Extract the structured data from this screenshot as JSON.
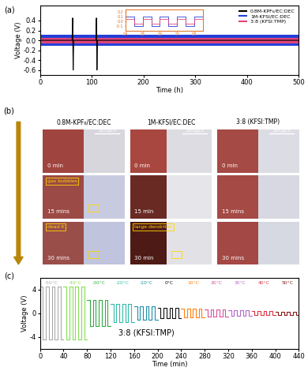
{
  "chart_data": [
    {
      "type": "line",
      "title": "(a)",
      "x_label": "Time (h)",
      "y_label": "Voltage (V)",
      "xlim": [
        0,
        500
      ],
      "xticks": [
        0,
        100,
        200,
        300,
        400,
        500
      ],
      "ylim": [
        -0.7,
        0.7
      ],
      "yticks": [
        -0.6,
        -0.4,
        -0.2,
        0.0,
        0.2,
        0.4
      ],
      "legend": "upper right",
      "series": [
        {
          "name": "0.8M-KPF₆/EC:DEC",
          "color": "#000000",
          "type": "line",
          "x": [
            0,
            62,
            63,
            64,
            65,
            108,
            109,
            110,
            111,
            500
          ],
          "values": [
            0,
            0,
            0.45,
            -0.6,
            0,
            0,
            0.45,
            -0.6,
            0,
            0
          ]
        },
        {
          "name": "1M-KFSI/EC:DEC",
          "color": "#2440d8",
          "type": "band",
          "x": [
            0,
            500
          ],
          "upper": [
            0.11,
            0.11
          ],
          "lower": [
            -0.11,
            -0.11
          ]
        },
        {
          "name": "3:8 (KFSI:TMP)",
          "color": "#e0457b",
          "type": "band",
          "x": [
            0,
            500
          ],
          "upper": [
            0.05,
            0.05
          ],
          "lower": [
            -0.06,
            -0.06
          ]
        }
      ],
      "inset": {
        "xlim": [
          54,
          58.5
        ],
        "xticks": [
          54,
          55,
          56,
          57,
          58
        ],
        "ylim": [
          -0.2,
          0.25
        ],
        "yticks": [
          -0.1,
          0.0,
          0.1,
          0.2
        ],
        "series": [
          {
            "color": "#2440d8",
            "line_style": "steps",
            "x": [
              54,
              54.5,
              55,
              55.5,
              56,
              56.5,
              57,
              57.5,
              58,
              58.5
            ],
            "values": [
              0.1,
              -0.1,
              0.1,
              -0.1,
              0.1,
              -0.1,
              0.1,
              -0.1,
              0.1,
              0.1
            ]
          },
          {
            "color": "#e0457b",
            "line_style": "steps",
            "x": [
              54,
              54.5,
              55,
              55.5,
              56,
              56.5,
              57,
              57.5,
              58,
              58.5
            ],
            "values": [
              0.05,
              -0.05,
              0.05,
              -0.05,
              0.05,
              -0.05,
              0.05,
              -0.05,
              0.05,
              0.05
            ]
          }
        ]
      }
    },
    {
      "type": "line",
      "title": "(c)",
      "x_label": "Time (min)",
      "y_label": "Voltage (V)",
      "text": "3:8 (KFSI:TMP)",
      "xlim": [
        0,
        440
      ],
      "xticks": [
        0,
        40,
        80,
        120,
        160,
        200,
        240,
        280,
        320,
        360,
        400,
        440
      ],
      "ylim": [
        -6,
        6
      ],
      "yticks": [
        -4,
        0,
        4
      ],
      "series": [
        {
          "name": "-50°C",
          "color": "#aaaaaa",
          "line_style": "steps",
          "x": [
            0,
            5,
            10,
            15,
            20,
            25,
            30,
            35,
            40
          ],
          "values": [
            4.5,
            -4.5,
            4.5,
            -4.5,
            4.5,
            -4.5,
            4.5,
            -4.5,
            -4.5
          ]
        },
        {
          "name": "-40°C",
          "color": "#88dd55",
          "line_style": "steps",
          "x": [
            40,
            45,
            50,
            55,
            60,
            65,
            70,
            75,
            80
          ],
          "values": [
            4.5,
            -4.5,
            4.5,
            -4.5,
            4.5,
            -4.5,
            4.5,
            -4.5,
            -4.5
          ]
        },
        {
          "name": "-30°C",
          "color": "#33aa44",
          "line_style": "steps",
          "x": [
            80,
            85,
            90,
            95,
            100,
            105,
            110,
            115,
            120
          ],
          "values": [
            2.2,
            -2.2,
            2.2,
            -2.2,
            2.2,
            -2.2,
            2.2,
            -2.2,
            -2.2
          ]
        },
        {
          "name": "-20°C",
          "color": "#33bbaa",
          "line_style": "steps",
          "x": [
            120,
            125,
            130,
            135,
            140,
            145,
            150,
            155,
            160
          ],
          "values": [
            1.5,
            -1.5,
            1.5,
            -1.5,
            1.5,
            -1.5,
            1.5,
            -1.5,
            -1.5
          ]
        },
        {
          "name": "-10°C",
          "color": "#1a8fa8",
          "line_style": "steps",
          "x": [
            160,
            165,
            170,
            175,
            180,
            185,
            190,
            195,
            200
          ],
          "values": [
            1.1,
            -1.1,
            1.1,
            -1.1,
            1.1,
            -1.1,
            1.1,
            -1.1,
            -1.1
          ]
        },
        {
          "name": "0°C",
          "color": "#111111",
          "line_style": "steps",
          "x": [
            200,
            205,
            210,
            215,
            220,
            225,
            230,
            235,
            240
          ],
          "values": [
            0.9,
            -0.9,
            0.9,
            -0.9,
            0.9,
            -0.9,
            0.9,
            -0.9,
            -0.9
          ]
        },
        {
          "name": "10°C",
          "color": "#ff7f0e",
          "line_style": "steps",
          "x": [
            240,
            245,
            250,
            255,
            260,
            265,
            270,
            275,
            280
          ],
          "values": [
            0.7,
            -0.7,
            0.7,
            -0.7,
            0.7,
            -0.7,
            0.7,
            -0.7,
            -0.7
          ]
        },
        {
          "name": "20°C",
          "color": "#d94fa0",
          "line_style": "steps",
          "x": [
            280,
            285,
            290,
            295,
            300,
            305,
            310,
            315,
            320
          ],
          "values": [
            0.55,
            -0.55,
            0.55,
            -0.55,
            0.55,
            -0.55,
            0.55,
            -0.55,
            -0.55
          ]
        },
        {
          "name": "30°C",
          "color": "#b266cc",
          "line_style": "steps",
          "x": [
            320,
            325,
            330,
            335,
            340,
            345,
            350,
            355,
            360
          ],
          "values": [
            0.45,
            -0.45,
            0.45,
            -0.45,
            0.45,
            -0.45,
            0.45,
            -0.45,
            -0.45
          ]
        },
        {
          "name": "40°C",
          "color": "#dd3344",
          "line_style": "steps",
          "x": [
            360,
            365,
            370,
            375,
            380,
            385,
            390,
            395,
            400
          ],
          "values": [
            0.35,
            -0.35,
            0.35,
            -0.35,
            0.35,
            -0.35,
            0.35,
            -0.35,
            -0.35
          ]
        },
        {
          "name": "50°C",
          "color": "#8b1a1a",
          "line_style": "steps",
          "x": [
            400,
            405,
            410,
            415,
            420,
            425,
            430,
            435,
            440
          ],
          "values": [
            0.25,
            -0.25,
            0.25,
            -0.25,
            0.25,
            -0.25,
            0.25,
            -0.25,
            -0.25
          ]
        }
      ]
    }
  ],
  "image_panel": {
    "label": "(b)",
    "columns": [
      "0.8M-KPF₆/EC:DEC",
      "1M-KFSI/EC:DEC",
      "3:8 (KFSI:TMP)"
    ],
    "rows": [
      [
        {
          "time": "0 min",
          "scale_bar": "500μm"
        },
        {
          "time": "0 min",
          "scale_bar": "500μm"
        },
        {
          "time": "0 min",
          "scale_bar": "500μm"
        }
      ],
      [
        {
          "time": "15 mins",
          "callout": "gas bubbles"
        },
        {
          "time": "15 min"
        },
        {
          "time": "15 mins"
        }
      ],
      [
        {
          "time": "30 mins",
          "callout": "dead K"
        },
        {
          "time": "30 min",
          "callout": "large dendrites"
        },
        {
          "time": "30 mins"
        }
      ]
    ]
  }
}
